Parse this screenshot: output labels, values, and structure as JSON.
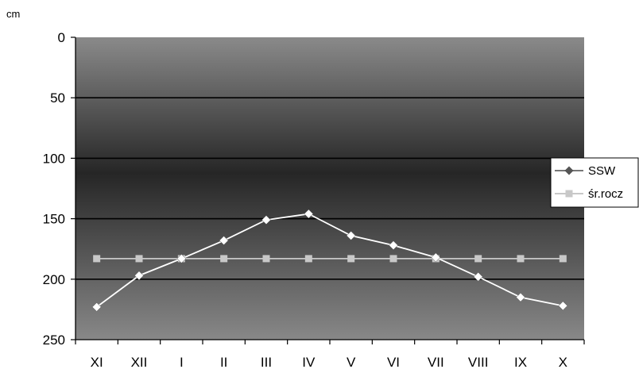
{
  "chart_data": {
    "type": "line",
    "y_unit": "cm",
    "categories": [
      "XI",
      "XII",
      "I",
      "II",
      "III",
      "IV",
      "V",
      "VI",
      "VII",
      "VIII",
      "IX",
      "X"
    ],
    "ylim": [
      0,
      250
    ],
    "y_inverted": true,
    "yticks": [
      0,
      50,
      100,
      150,
      200,
      250
    ],
    "grid": "horizontal",
    "legend_position": "right",
    "series": [
      {
        "name": "SSW",
        "marker": "diamond",
        "color": "#ffffff",
        "values": [
          223,
          197,
          183,
          168,
          151,
          146,
          164,
          172,
          182,
          198,
          215,
          222
        ]
      },
      {
        "name": "śr.rocz",
        "marker": "square",
        "color": "#c8c8c8",
        "values": [
          183,
          183,
          183,
          183,
          183,
          183,
          183,
          183,
          183,
          183,
          183,
          183
        ]
      }
    ],
    "plot_background": {
      "top": "#8a8a8a",
      "middle": "#262626",
      "bottom": "#888888"
    }
  }
}
